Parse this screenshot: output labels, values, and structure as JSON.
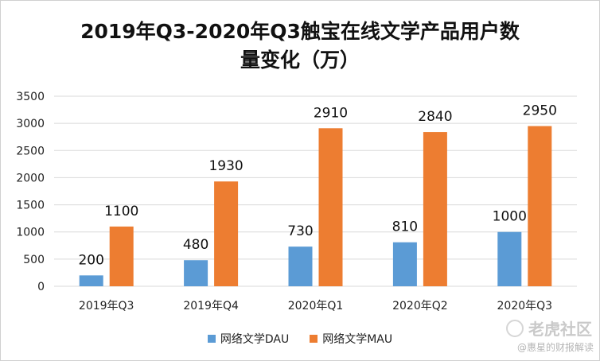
{
  "title_line1": "2019年Q3-2020年Q3触宝在线文学产品用户数",
  "title_line2": "量变化（万）",
  "watermark": "老虎社区",
  "watermark_sub": "@惠星的财报解读",
  "colors": {
    "dau": "#5b9bd5",
    "mau": "#ed7d31",
    "grid": "#d9d9d9"
  },
  "chart_data": {
    "type": "bar",
    "categories": [
      "2019年Q3",
      "2019年Q4",
      "2020年Q1",
      "2020年Q2",
      "2020年Q3"
    ],
    "series": [
      {
        "name": "网络文学DAU",
        "values": [
          200,
          480,
          730,
          810,
          1000
        ]
      },
      {
        "name": "网络文学MAU",
        "values": [
          1100,
          1930,
          2910,
          2840,
          2950
        ]
      }
    ],
    "yticks": [
      0,
      500,
      1000,
      1500,
      2000,
      2500,
      3000,
      3500
    ],
    "ylim": [
      0,
      3500
    ],
    "grid": true,
    "legend": "bottom"
  }
}
